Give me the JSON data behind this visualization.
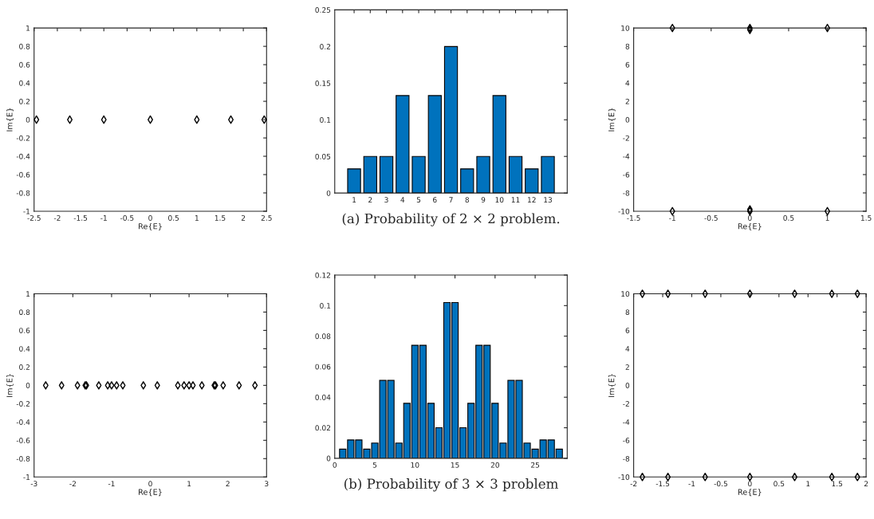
{
  "chart_data": [
    {
      "type": "scatter",
      "xlabel": "Re{E}",
      "ylabel": "Im{E}",
      "x": [
        -2.449,
        -1.732,
        -1,
        0,
        1,
        1.732,
        2.449
      ],
      "series": [
        {
          "color": "#000000",
          "values": [
            0,
            0,
            0,
            0,
            0,
            0,
            0
          ]
        }
      ],
      "xlim": [
        -2.5,
        2.5
      ],
      "xticks": [
        -2.5,
        -2,
        -1.5,
        -1,
        -0.5,
        0,
        0.5,
        1,
        1.5,
        2,
        2.5
      ],
      "ylim": [
        -1,
        1
      ],
      "yticks": [
        -1,
        -0.8,
        -0.6,
        -0.4,
        -0.2,
        0,
        0.2,
        0.4,
        0.6,
        0.8,
        1
      ],
      "marker": "diamond"
    },
    {
      "type": "bar",
      "categories": [
        "1",
        "2",
        "3",
        "4",
        "5",
        "6",
        "7",
        "8",
        "9",
        "10",
        "11",
        "12",
        "13"
      ],
      "series": [
        {
          "color": "#0072bd",
          "values": [
            0.033,
            0.05,
            0.05,
            0.133,
            0.05,
            0.133,
            0.2,
            0.033,
            0.05,
            0.133,
            0.05,
            0.033,
            0.05
          ]
        }
      ],
      "ylim": [
        0,
        0.25
      ],
      "yticks": [
        0,
        0.05,
        0.1,
        0.15,
        0.2,
        0.25
      ],
      "annotations": [
        "(a) Probability of 2 × 2 problem."
      ]
    },
    {
      "type": "scatter",
      "xlabel": "Re{E}",
      "ylabel": "Im{E}",
      "x": [
        -1,
        0,
        0,
        1,
        -1,
        0,
        0,
        1
      ],
      "series": [
        {
          "color": "#000000",
          "values": [
            10,
            10,
            9.8,
            10,
            -10,
            -10,
            -9.8,
            -10
          ]
        }
      ],
      "xlim": [
        -1.5,
        1.5
      ],
      "xticks": [
        -1.5,
        -1,
        -0.5,
        0,
        0.5,
        1,
        1.5
      ],
      "ylim": [
        -10,
        10
      ],
      "yticks": [
        -10,
        -8,
        -6,
        -4,
        -2,
        0,
        2,
        4,
        6,
        8,
        10
      ],
      "marker": "diamond"
    },
    {
      "type": "scatter",
      "xlabel": "Re{E}",
      "ylabel": "Im{E}",
      "x": [
        -2.7,
        -2.29,
        -1.88,
        -1.68,
        -1.65,
        -1.33,
        -1.1,
        -1,
        -0.87,
        -0.71,
        -0.18,
        0.18,
        0.71,
        0.87,
        1,
        1.1,
        1.33,
        1.65,
        1.68,
        1.88,
        2.29,
        2.7
      ],
      "series": [
        {
          "color": "#000000",
          "values": [
            0,
            0,
            0,
            0,
            0,
            0,
            0,
            0,
            0,
            0,
            0,
            0,
            0,
            0,
            0,
            0,
            0,
            0,
            0,
            0,
            0,
            0
          ]
        }
      ],
      "xlim": [
        -3,
        3
      ],
      "xticks": [
        -3,
        -2,
        -1,
        0,
        1,
        2,
        3
      ],
      "ylim": [
        -1,
        1
      ],
      "yticks": [
        -1,
        -0.8,
        -0.6,
        -0.4,
        -0.2,
        0,
        0.2,
        0.4,
        0.6,
        0.8,
        1
      ],
      "marker": "diamond"
    },
    {
      "type": "bar",
      "x": [
        1,
        2,
        3,
        4,
        5,
        6,
        7,
        8,
        9,
        10,
        11,
        12,
        13,
        14,
        15,
        16,
        17,
        18,
        19,
        20,
        21,
        22,
        23,
        24,
        25,
        26,
        27,
        28
      ],
      "series": [
        {
          "color": "#0072bd",
          "values": [
            0.006,
            0.012,
            0.012,
            0.006,
            0.01,
            0.051,
            0.051,
            0.01,
            0.036,
            0.074,
            0.074,
            0.036,
            0.02,
            0.102,
            0.102,
            0.02,
            0.036,
            0.074,
            0.074,
            0.036,
            0.01,
            0.051,
            0.051,
            0.01,
            0.006,
            0.012,
            0.012,
            0.006
          ]
        }
      ],
      "xlim": [
        0,
        29
      ],
      "xticks": [
        0,
        5,
        10,
        15,
        20,
        25
      ],
      "ylim": [
        0,
        0.12
      ],
      "yticks": [
        0,
        0.02,
        0.04,
        0.06,
        0.08,
        0.1,
        0.12
      ],
      "annotations": [
        "(b) Probability of 3 × 3 problem"
      ]
    },
    {
      "type": "scatter",
      "xlabel": "Re{E}",
      "ylabel": "Im{E}",
      "x": [
        -1.85,
        -1.41,
        -0.77,
        0,
        0.77,
        1.41,
        1.85,
        -1.85,
        -1.41,
        -0.77,
        0,
        0.77,
        1.41,
        1.85
      ],
      "series": [
        {
          "color": "#000000",
          "values": [
            10,
            10,
            10,
            10,
            10,
            10,
            10,
            -10,
            -10,
            -10,
            -10,
            -10,
            -10,
            -10
          ]
        }
      ],
      "xlim": [
        -2,
        2
      ],
      "xticks": [
        -2,
        -1.5,
        -1,
        -0.5,
        0,
        0.5,
        1,
        1.5,
        2
      ],
      "ylim": [
        -10,
        10
      ],
      "yticks": [
        -10,
        -8,
        -6,
        -4,
        -2,
        0,
        2,
        4,
        6,
        8,
        10
      ],
      "marker": "diamond"
    }
  ]
}
